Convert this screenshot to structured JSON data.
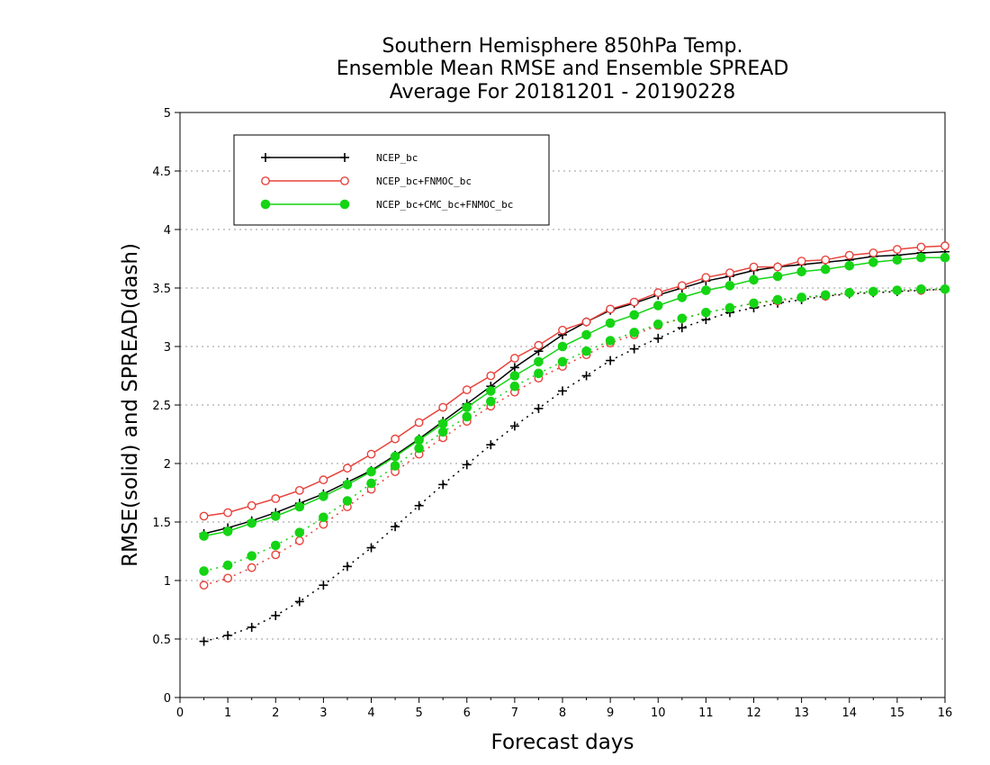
{
  "chart_data": {
    "type": "line",
    "title": [
      "Southern Hemisphere 850hPa Temp.",
      "Ensemble Mean RMSE and Ensemble SPREAD",
      "Average For 20181201 - 20190228"
    ],
    "xlabel": "Forecast days",
    "ylabel": "RMSE(solid) and SPREAD(dash)",
    "xlim": [
      0,
      16
    ],
    "ylim": [
      0,
      5
    ],
    "xticks": [
      "0",
      "1",
      "2",
      "3",
      "4",
      "5",
      "6",
      "7",
      "8",
      "9",
      "10",
      "11",
      "12",
      "13",
      "14",
      "15",
      "16"
    ],
    "yticks": [
      "0",
      "0.5",
      "1",
      "1.5",
      "2",
      "2.5",
      "3",
      "3.5",
      "4",
      "4.5",
      "5"
    ],
    "grid": "horizontal-dotted",
    "legend_position": "top-left",
    "x": [
      0.5,
      1,
      1.5,
      2,
      2.5,
      3,
      3.5,
      4,
      4.5,
      5,
      5.5,
      6,
      6.5,
      7,
      7.5,
      8,
      8.5,
      9,
      9.5,
      10,
      10.5,
      11,
      11.5,
      12,
      12.5,
      13,
      13.5,
      14,
      14.5,
      15,
      15.5,
      16
    ],
    "series": [
      {
        "name": "NCEP_bc",
        "color": "#000000",
        "marker": "plus",
        "rmse": [
          1.4,
          1.45,
          1.51,
          1.58,
          1.66,
          1.74,
          1.84,
          1.94,
          2.07,
          2.21,
          2.36,
          2.51,
          2.66,
          2.82,
          2.96,
          3.1,
          3.21,
          3.31,
          3.37,
          3.44,
          3.5,
          3.56,
          3.6,
          3.65,
          3.68,
          3.7,
          3.72,
          3.74,
          3.77,
          3.78,
          3.8,
          3.81
        ],
        "spread": [
          0.48,
          0.53,
          0.6,
          0.7,
          0.82,
          0.96,
          1.12,
          1.28,
          1.46,
          1.64,
          1.82,
          1.99,
          2.16,
          2.32,
          2.47,
          2.62,
          2.75,
          2.88,
          2.98,
          3.07,
          3.16,
          3.23,
          3.29,
          3.33,
          3.37,
          3.4,
          3.43,
          3.45,
          3.46,
          3.47,
          3.48,
          3.49
        ]
      },
      {
        "name": "NCEP_bc+FNMOC_bc",
        "color": "#e8423c",
        "marker": "open-circle",
        "rmse": [
          1.55,
          1.58,
          1.64,
          1.7,
          1.77,
          1.86,
          1.96,
          2.08,
          2.21,
          2.35,
          2.48,
          2.63,
          2.75,
          2.9,
          3.01,
          3.14,
          3.21,
          3.32,
          3.38,
          3.46,
          3.52,
          3.59,
          3.63,
          3.68,
          3.68,
          3.73,
          3.74,
          3.78,
          3.8,
          3.83,
          3.85,
          3.86
        ],
        "spread": [
          0.96,
          1.02,
          1.11,
          1.22,
          1.34,
          1.48,
          1.63,
          1.78,
          1.93,
          2.08,
          2.22,
          2.36,
          2.49,
          2.61,
          2.73,
          2.83,
          2.93,
          3.03,
          3.1,
          3.18,
          3.24,
          3.29,
          3.33,
          3.37,
          3.39,
          3.42,
          3.43,
          3.46,
          3.47,
          3.48,
          3.48,
          3.49
        ]
      },
      {
        "name": "NCEP_bc+CMC_bc+FNMOC_bc",
        "color": "#14d414",
        "marker": "filled-circle",
        "rmse": [
          1.38,
          1.42,
          1.49,
          1.55,
          1.63,
          1.72,
          1.82,
          1.93,
          2.06,
          2.2,
          2.34,
          2.48,
          2.62,
          2.75,
          2.87,
          3.0,
          3.1,
          3.2,
          3.27,
          3.35,
          3.42,
          3.48,
          3.52,
          3.57,
          3.6,
          3.64,
          3.66,
          3.69,
          3.72,
          3.74,
          3.76,
          3.76
        ],
        "spread": [
          1.08,
          1.13,
          1.21,
          1.3,
          1.41,
          1.54,
          1.68,
          1.83,
          1.98,
          2.13,
          2.27,
          2.4,
          2.53,
          2.66,
          2.77,
          2.87,
          2.96,
          3.05,
          3.12,
          3.19,
          3.24,
          3.29,
          3.33,
          3.37,
          3.4,
          3.42,
          3.44,
          3.46,
          3.47,
          3.48,
          3.49,
          3.49
        ]
      }
    ]
  }
}
